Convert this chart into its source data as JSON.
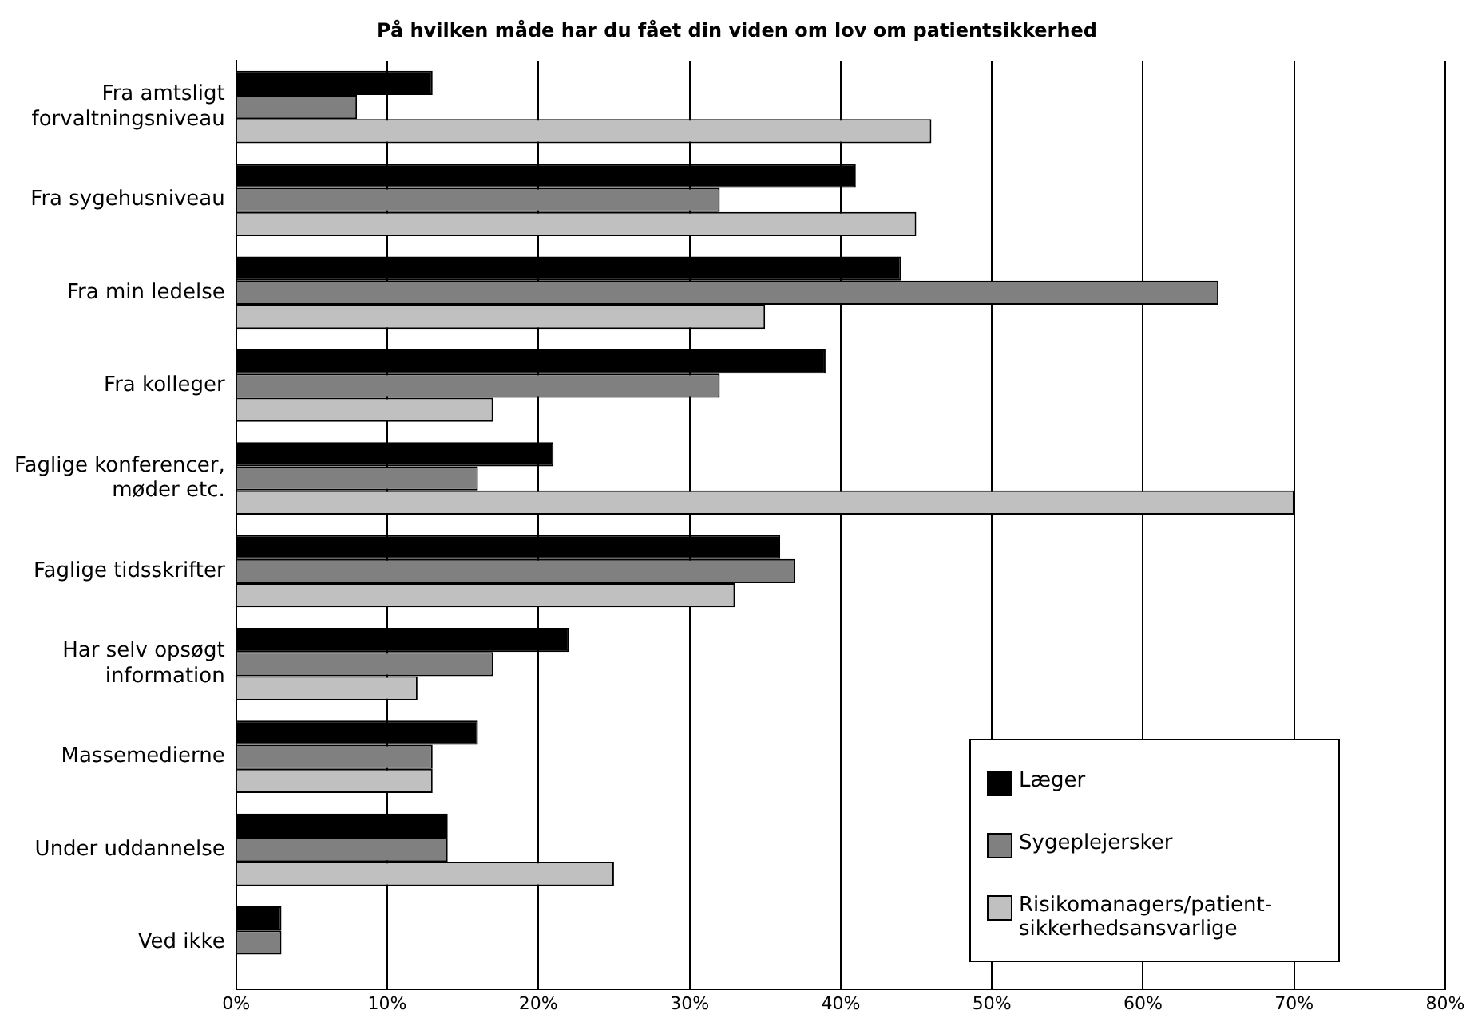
{
  "chart_data": {
    "type": "bar",
    "orientation": "horizontal",
    "title": "På hvilken måde har du fået din viden om lov om patientsikkerhed",
    "categories": [
      "Fra amtsligt forvaltningsniveau",
      "Fra sygehusniveau",
      "Fra min ledelse",
      "Fra kolleger",
      "Faglige konferencer, møder etc.",
      "Faglige tidsskrifter",
      "Har selv opsøgt information",
      "Massemedierne",
      "Under uddannelse",
      "Ved ikke"
    ],
    "series": [
      {
        "name": "Læger",
        "color": "#000000",
        "values": [
          13,
          41,
          44,
          39,
          21,
          36,
          22,
          16,
          14,
          3
        ]
      },
      {
        "name": "Sygeplejersker",
        "color": "#808080",
        "values": [
          8,
          32,
          65,
          32,
          16,
          37,
          17,
          13,
          14,
          3
        ]
      },
      {
        "name": "Risikomanagers/patient-sikkerhedsansvarlige",
        "color": "#c0c0c0",
        "values": [
          46,
          45,
          35,
          17,
          70,
          33,
          12,
          13,
          25,
          null
        ]
      }
    ],
    "xlim": [
      0,
      80
    ],
    "xticks": [
      {
        "value": 0,
        "label": "0%"
      },
      {
        "value": 10,
        "label": "10%"
      },
      {
        "value": 20,
        "label": "20%"
      },
      {
        "value": 30,
        "label": "30%"
      },
      {
        "value": 40,
        "label": "40%"
      },
      {
        "value": 50,
        "label": "50%"
      },
      {
        "value": 60,
        "label": "60%"
      },
      {
        "value": 70,
        "label": "70%"
      },
      {
        "value": 80,
        "label": "80%"
      }
    ],
    "grid": "x",
    "legend": "bottom right"
  }
}
